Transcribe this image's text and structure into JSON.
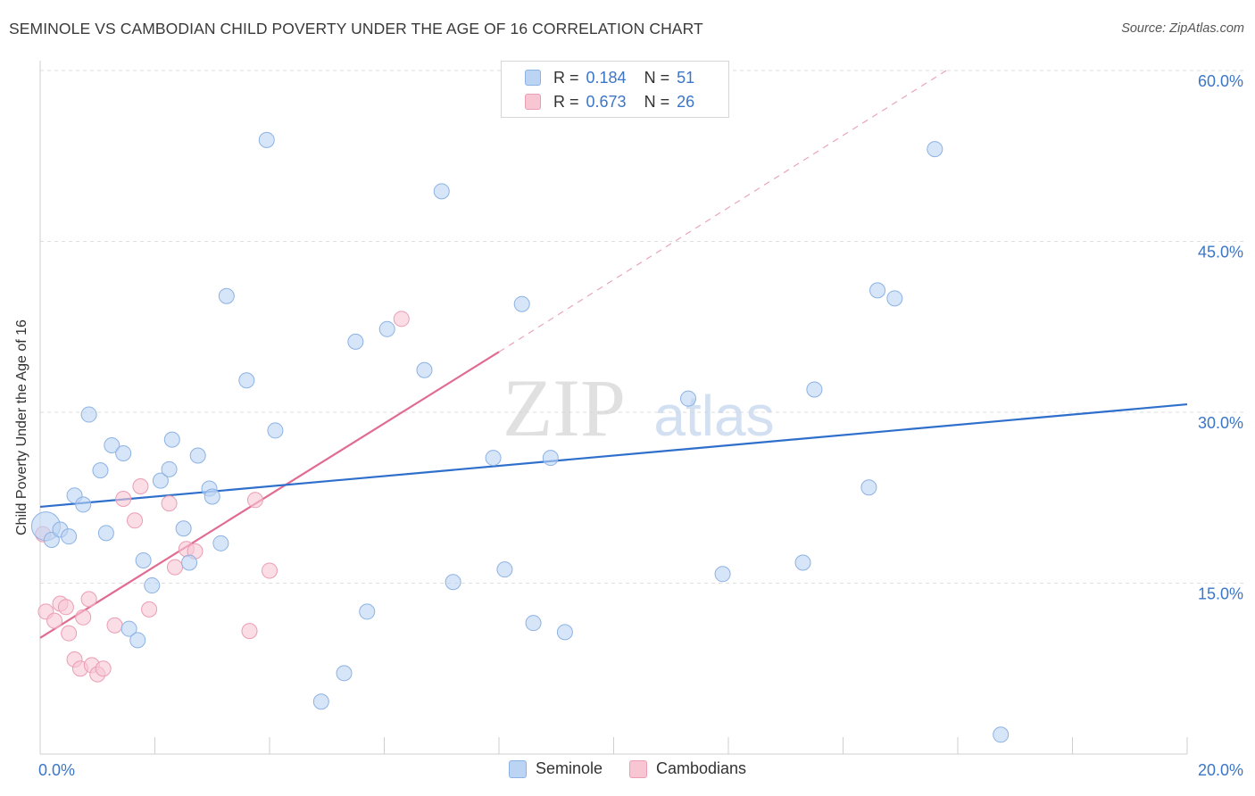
{
  "header": {
    "title": "SEMINOLE VS CAMBODIAN CHILD POVERTY UNDER THE AGE OF 16 CORRELATION CHART",
    "source": "Source: ZipAtlas.com"
  },
  "watermark": {
    "zip": "ZIP",
    "atlas": "atlas"
  },
  "colors": {
    "seminole_fill": "#bcd4f3",
    "seminole_stroke": "#8cb2e4",
    "seminole_line": "#2f6fcc",
    "cambodian_fill": "#f8c6d3",
    "cambodian_stroke": "#eb9db4",
    "cambodian_line": "#e16b91",
    "axis_label": "#3b76c8",
    "grid": "#dddddd"
  },
  "legend": {
    "rows": [
      {
        "r_label": "R =",
        "r_value": "0.184",
        "n_label": "N =",
        "n_value": "51"
      },
      {
        "r_label": "R =",
        "r_value": "0.673",
        "n_label": "N =",
        "n_value": "26"
      }
    ]
  },
  "bottom_legend": {
    "seminole": "Seminole",
    "cambodians": "Cambodians"
  },
  "chart_data": {
    "type": "scatter",
    "title": "SEMINOLE VS CAMBODIAN CHILD POVERTY UNDER THE AGE OF 16 CORRELATION CHART",
    "xlabel": "",
    "ylabel": "Child Poverty Under the Age of 16",
    "xlim": [
      0,
      20
    ],
    "ylim": [
      0,
      60
    ],
    "x_tick_labels": [
      "0.0%",
      "20.0%"
    ],
    "y_ticks": [
      15,
      30,
      45,
      60
    ],
    "y_tick_labels": [
      "15.0%",
      "30.0%",
      "45.0%",
      "60.0%"
    ],
    "grid": true,
    "series": [
      {
        "name": "Seminole",
        "r": 0.184,
        "n": 51,
        "trend": {
          "x0": 0,
          "y0": 21.7,
          "x1": 20,
          "y1": 30.7
        },
        "points": [
          [
            0.1,
            20.0
          ],
          [
            0.2,
            18.8
          ],
          [
            0.35,
            19.7
          ],
          [
            0.5,
            19.1
          ],
          [
            0.6,
            22.7
          ],
          [
            0.75,
            21.9
          ],
          [
            0.85,
            29.8
          ],
          [
            1.05,
            24.9
          ],
          [
            1.15,
            19.4
          ],
          [
            1.25,
            27.1
          ],
          [
            1.45,
            26.4
          ],
          [
            1.55,
            11.0
          ],
          [
            1.7,
            10.0
          ],
          [
            1.8,
            17.0
          ],
          [
            1.95,
            14.8
          ],
          [
            2.1,
            24.0
          ],
          [
            2.25,
            25.0
          ],
          [
            2.3,
            27.6
          ],
          [
            2.5,
            19.8
          ],
          [
            2.6,
            16.8
          ],
          [
            2.75,
            26.2
          ],
          [
            2.95,
            23.3
          ],
          [
            3.0,
            22.6
          ],
          [
            3.15,
            18.5
          ],
          [
            3.25,
            40.2
          ],
          [
            3.6,
            32.8
          ],
          [
            3.95,
            53.9
          ],
          [
            4.1,
            28.4
          ],
          [
            4.9,
            4.6
          ],
          [
            5.3,
            7.1
          ],
          [
            5.5,
            36.2
          ],
          [
            5.7,
            12.5
          ],
          [
            6.05,
            37.3
          ],
          [
            6.7,
            33.7
          ],
          [
            7.0,
            49.4
          ],
          [
            7.2,
            15.1
          ],
          [
            7.9,
            26.0
          ],
          [
            8.1,
            16.2
          ],
          [
            8.4,
            39.5
          ],
          [
            8.6,
            11.5
          ],
          [
            8.9,
            26.0
          ],
          [
            9.15,
            10.7
          ],
          [
            11.3,
            31.2
          ],
          [
            11.9,
            15.8
          ],
          [
            13.3,
            16.8
          ],
          [
            13.5,
            32.0
          ],
          [
            14.45,
            23.4
          ],
          [
            14.6,
            40.7
          ],
          [
            14.9,
            40.0
          ],
          [
            15.6,
            53.1
          ],
          [
            16.75,
            1.7
          ]
        ]
      },
      {
        "name": "Cambodians",
        "r": 0.673,
        "n": 26,
        "trend": {
          "x0": 0,
          "y0": 10.2,
          "x1": 8.0,
          "y1": 35.3,
          "dash_x1": 15.8,
          "dash_y1": 60.0
        },
        "points": [
          [
            0.05,
            19.3
          ],
          [
            0.1,
            12.5
          ],
          [
            0.25,
            11.7
          ],
          [
            0.35,
            13.2
          ],
          [
            0.45,
            12.9
          ],
          [
            0.5,
            10.6
          ],
          [
            0.6,
            8.3
          ],
          [
            0.7,
            7.5
          ],
          [
            0.75,
            12.0
          ],
          [
            0.85,
            13.6
          ],
          [
            0.9,
            7.8
          ],
          [
            1.0,
            7.0
          ],
          [
            1.1,
            7.5
          ],
          [
            1.3,
            11.3
          ],
          [
            1.45,
            22.4
          ],
          [
            1.65,
            20.5
          ],
          [
            1.75,
            23.5
          ],
          [
            1.9,
            12.7
          ],
          [
            2.25,
            22.0
          ],
          [
            2.35,
            16.4
          ],
          [
            2.55,
            18.0
          ],
          [
            2.7,
            17.8
          ],
          [
            3.65,
            10.8
          ],
          [
            3.75,
            22.3
          ],
          [
            4.0,
            16.1
          ],
          [
            6.3,
            38.2
          ]
        ]
      }
    ]
  }
}
